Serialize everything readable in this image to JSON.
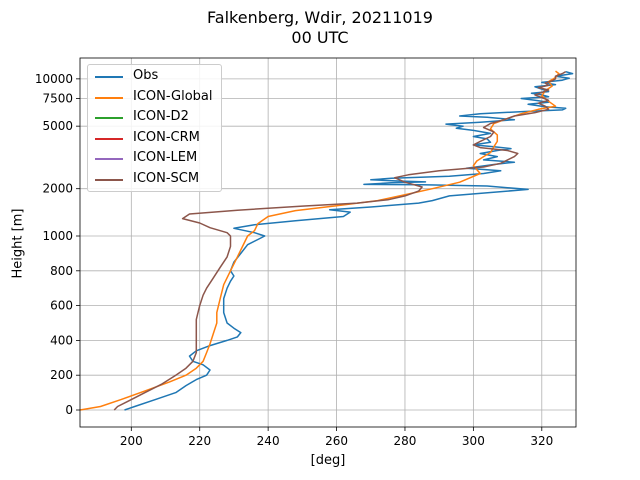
{
  "chart_data": {
    "type": "line",
    "title": "Falkenberg, Wdir, 20211019",
    "subtitle": "00 UTC",
    "xlabel": "[deg]",
    "ylabel": "Height [m]",
    "xlim": [
      185,
      330
    ],
    "x_ticks": [
      200,
      220,
      240,
      260,
      280,
      300,
      320
    ],
    "y_ticks": [
      0,
      200,
      400,
      600,
      800,
      1000,
      2000,
      5000,
      7500,
      10000
    ],
    "y_scale": "piecewise: linear 0-1000 m, logarithmic above 1000 m",
    "grid": true,
    "legend_position": "upper-left",
    "series": [
      {
        "name": "Obs",
        "color": "#1f77b4",
        "points": [
          [
            198,
            0
          ],
          [
            201,
            20
          ],
          [
            207,
            60
          ],
          [
            213,
            100
          ],
          [
            216,
            140
          ],
          [
            219,
            175
          ],
          [
            222,
            200
          ],
          [
            223,
            230
          ],
          [
            221,
            260
          ],
          [
            218,
            280
          ],
          [
            217,
            310
          ],
          [
            219,
            340
          ],
          [
            223,
            370
          ],
          [
            228,
            400
          ],
          [
            231,
            420
          ],
          [
            232,
            445
          ],
          [
            230,
            470
          ],
          [
            228,
            500
          ],
          [
            227,
            560
          ],
          [
            227,
            640
          ],
          [
            228,
            700
          ],
          [
            229,
            740
          ],
          [
            230,
            770
          ],
          [
            229,
            800
          ],
          [
            230,
            850
          ],
          [
            232,
            900
          ],
          [
            234,
            950
          ],
          [
            237,
            980
          ],
          [
            239,
            1000
          ],
          [
            236,
            1050
          ],
          [
            230,
            1120
          ],
          [
            236,
            1180
          ],
          [
            248,
            1250
          ],
          [
            262,
            1330
          ],
          [
            264,
            1420
          ],
          [
            258,
            1470
          ],
          [
            270,
            1530
          ],
          [
            284,
            1620
          ],
          [
            288,
            1680
          ],
          [
            293,
            1800
          ],
          [
            316,
            1980
          ],
          [
            304,
            2080
          ],
          [
            285,
            2120
          ],
          [
            268,
            2130
          ],
          [
            276,
            2180
          ],
          [
            286,
            2210
          ],
          [
            278,
            2240
          ],
          [
            270,
            2280
          ],
          [
            276,
            2330
          ],
          [
            293,
            2400
          ],
          [
            303,
            2500
          ],
          [
            308,
            2600
          ],
          [
            298,
            2700
          ],
          [
            306,
            2850
          ],
          [
            312,
            2950
          ],
          [
            303,
            3050
          ],
          [
            307,
            3200
          ],
          [
            302,
            3350
          ],
          [
            307,
            3500
          ],
          [
            311,
            3600
          ],
          [
            306,
            3700
          ],
          [
            300,
            3800
          ],
          [
            305,
            3950
          ],
          [
            304,
            4150
          ],
          [
            300,
            4300
          ],
          [
            305,
            4500
          ],
          [
            300,
            4700
          ],
          [
            295,
            4850
          ],
          [
            297,
            5000
          ],
          [
            292,
            5150
          ],
          [
            302,
            5300
          ],
          [
            312,
            5500
          ],
          [
            304,
            5700
          ],
          [
            296,
            5800
          ],
          [
            302,
            6000
          ],
          [
            315,
            6200
          ],
          [
            326,
            6350
          ],
          [
            327,
            6500
          ],
          [
            321,
            6650
          ],
          [
            316,
            6900
          ],
          [
            322,
            7100
          ],
          [
            318,
            7300
          ],
          [
            314,
            7500
          ],
          [
            322,
            7700
          ],
          [
            320,
            7900
          ],
          [
            317,
            8100
          ],
          [
            322,
            8300
          ],
          [
            320,
            8600
          ],
          [
            318,
            8900
          ],
          [
            324,
            9200
          ],
          [
            320,
            9500
          ],
          [
            326,
            9800
          ],
          [
            328,
            10100
          ],
          [
            324,
            10400
          ],
          [
            329,
            10800
          ],
          [
            327,
            11100
          ]
        ]
      },
      {
        "name": "ICON-Global",
        "color": "#ff7f0e",
        "points": [
          [
            185,
            0
          ],
          [
            191,
            20
          ],
          [
            197,
            60
          ],
          [
            204,
            110
          ],
          [
            211,
            160
          ],
          [
            216,
            200
          ],
          [
            219,
            240
          ],
          [
            221,
            280
          ],
          [
            222,
            330
          ],
          [
            223,
            380
          ],
          [
            224,
            440
          ],
          [
            225,
            500
          ],
          [
            225,
            560
          ],
          [
            226,
            640
          ],
          [
            227,
            720
          ],
          [
            229,
            800
          ],
          [
            231,
            880
          ],
          [
            232,
            920
          ],
          [
            233,
            960
          ],
          [
            234,
            1000
          ],
          [
            236,
            1080
          ],
          [
            237,
            1200
          ],
          [
            240,
            1330
          ],
          [
            248,
            1450
          ],
          [
            260,
            1560
          ],
          [
            272,
            1680
          ],
          [
            281,
            1850
          ],
          [
            288,
            2000
          ],
          [
            296,
            2200
          ],
          [
            302,
            2500
          ],
          [
            300,
            2800
          ],
          [
            301,
            3000
          ],
          [
            303,
            3200
          ],
          [
            305,
            3400
          ],
          [
            306,
            3700
          ],
          [
            307,
            4000
          ],
          [
            307,
            4400
          ],
          [
            305,
            4800
          ],
          [
            306,
            5200
          ],
          [
            310,
            5600
          ],
          [
            314,
            6000
          ],
          [
            319,
            6400
          ],
          [
            324,
            6700
          ],
          [
            322,
            7200
          ],
          [
            320,
            7800
          ],
          [
            321,
            8400
          ],
          [
            323,
            9000
          ],
          [
            322,
            9600
          ],
          [
            324,
            10200
          ],
          [
            325,
            10800
          ],
          [
            324,
            11200
          ]
        ]
      },
      {
        "name": "ICON-D2",
        "color": "#2ca02c",
        "points": []
      },
      {
        "name": "ICON-CRM",
        "color": "#d62728",
        "points": []
      },
      {
        "name": "ICON-LEM",
        "color": "#9467bd",
        "points": []
      },
      {
        "name": "ICON-SCM",
        "color": "#8c564b",
        "points": [
          [
            195,
            0
          ],
          [
            196,
            20
          ],
          [
            199,
            50
          ],
          [
            204,
            100
          ],
          [
            209,
            150
          ],
          [
            213,
            200
          ],
          [
            216,
            240
          ],
          [
            218,
            280
          ],
          [
            219,
            330
          ],
          [
            219,
            400
          ],
          [
            219,
            460
          ],
          [
            219,
            520
          ],
          [
            220,
            600
          ],
          [
            221,
            660
          ],
          [
            222,
            700
          ],
          [
            224,
            760
          ],
          [
            226,
            820
          ],
          [
            228,
            880
          ],
          [
            229,
            940
          ],
          [
            229,
            1000
          ],
          [
            228,
            1050
          ],
          [
            223,
            1130
          ],
          [
            220,
            1210
          ],
          [
            215,
            1290
          ],
          [
            217,
            1380
          ],
          [
            231,
            1460
          ],
          [
            250,
            1550
          ],
          [
            266,
            1620
          ],
          [
            275,
            1700
          ],
          [
            280,
            1800
          ],
          [
            284,
            1930
          ],
          [
            285,
            2050
          ],
          [
            280,
            2200
          ],
          [
            277,
            2350
          ],
          [
            281,
            2450
          ],
          [
            290,
            2600
          ],
          [
            303,
            2750
          ],
          [
            308,
            2900
          ],
          [
            310,
            3050
          ],
          [
            312,
            3200
          ],
          [
            313,
            3350
          ],
          [
            310,
            3500
          ],
          [
            302,
            3650
          ],
          [
            300,
            3800
          ],
          [
            302,
            4000
          ],
          [
            305,
            4300
          ],
          [
            306,
            4600
          ],
          [
            303,
            4900
          ],
          [
            305,
            5200
          ],
          [
            309,
            5500
          ],
          [
            312,
            5800
          ],
          [
            318,
            6100
          ],
          [
            322,
            6400
          ],
          [
            321,
            6700
          ],
          [
            319,
            7000
          ],
          [
            322,
            7300
          ],
          [
            320,
            7600
          ],
          [
            318,
            7900
          ],
          [
            320,
            8200
          ],
          [
            322,
            8500
          ],
          [
            319,
            8800
          ],
          [
            322,
            9100
          ],
          [
            321,
            9400
          ],
          [
            323,
            9700
          ],
          [
            324,
            10000
          ],
          [
            324,
            10400
          ],
          [
            326,
            10800
          ],
          [
            327,
            11100
          ]
        ]
      }
    ]
  }
}
